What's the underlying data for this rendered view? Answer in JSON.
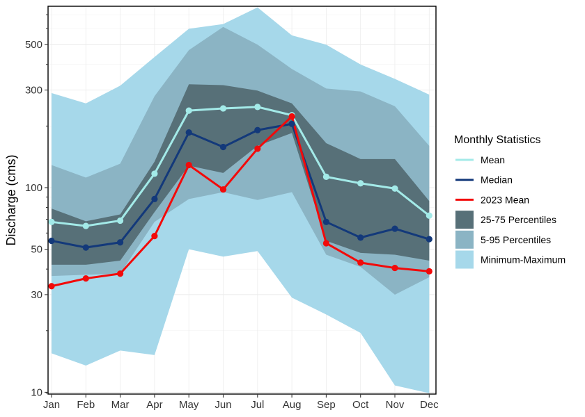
{
  "chart_data": {
    "type": "line",
    "title": "",
    "xlabel": "",
    "ylabel": "Discharge (cms)",
    "y_scale": "log10",
    "ylim": [
      9.8,
      770
    ],
    "yticks": [
      10,
      30,
      50,
      100,
      300,
      500
    ],
    "categories": [
      "Jan",
      "Feb",
      "Mar",
      "Apr",
      "May",
      "Jun",
      "Jul",
      "Aug",
      "Sep",
      "Oct",
      "Nov",
      "Dec"
    ],
    "bands": [
      {
        "name": "Minimum-Maximum",
        "color": "#a6d8ea",
        "lower": [
          15.5,
          13.5,
          16,
          15.2,
          50,
          46,
          49,
          29,
          24,
          19.5,
          10.8,
          9.9
        ],
        "upper": [
          290,
          258,
          315,
          435,
          598,
          630,
          760,
          555,
          500,
          400,
          340,
          285
        ]
      },
      {
        "name": "5-95 Percentiles",
        "color": "#8bb4c4",
        "lower": [
          37,
          37.5,
          38,
          68,
          88,
          95,
          87,
          95,
          47,
          41,
          30,
          36.5
        ],
        "upper": [
          129,
          112,
          131,
          280,
          470,
          610,
          500,
          380,
          305,
          295,
          250,
          160
        ]
      },
      {
        "name": "25-75 Percentiles",
        "color": "#577078",
        "lower": [
          42,
          42,
          44,
          76,
          128,
          118,
          160,
          185,
          55,
          48,
          47,
          44
        ],
        "upper": [
          79,
          68.5,
          74,
          134,
          320,
          317,
          298,
          258,
          165,
          138,
          138,
          86
        ]
      }
    ],
    "series": [
      {
        "name": "Mean",
        "color": "#a3eae8",
        "values": [
          68,
          65,
          69,
          117,
          238,
          244,
          248,
          226,
          113,
          105,
          99,
          73
        ]
      },
      {
        "name": "Median",
        "color": "#13397a",
        "values": [
          55,
          51,
          54,
          88,
          186,
          158,
          191,
          205,
          68,
          57,
          63,
          56
        ]
      },
      {
        "name": "2023 Mean",
        "color": "#f20a0a",
        "values": [
          33,
          36,
          38,
          58,
          129,
          98,
          155,
          223,
          53.5,
          43,
          40.5,
          39
        ]
      }
    ],
    "legend": {
      "title": "Monthly Statistics",
      "position": "right",
      "line_items": [
        "Mean",
        "Median",
        "2023 Mean"
      ],
      "band_items": [
        "25-75 Percentiles",
        "5-95 Percentiles",
        "Minimum-Maximum"
      ]
    },
    "grid": true
  }
}
